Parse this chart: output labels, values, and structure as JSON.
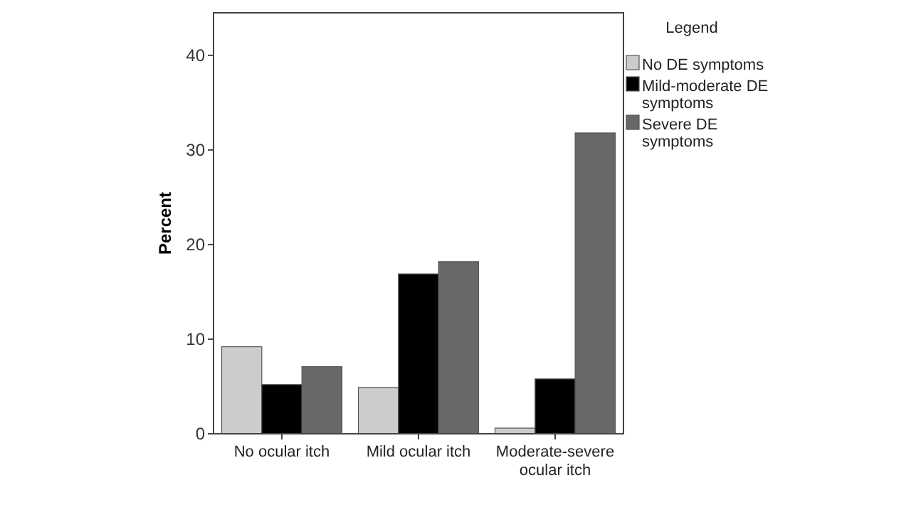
{
  "chart_data": {
    "type": "bar",
    "ylabel": "Percent",
    "legend_title": "Legend",
    "categories": [
      "No ocular itch",
      "Mild ocular itch",
      "Moderate-severe ocular itch"
    ],
    "series": [
      {
        "name": "No DE symptoms",
        "color": "#cccccc",
        "values": [
          9.2,
          4.9,
          0.6
        ]
      },
      {
        "name": "Mild-moderate DE symptoms",
        "color": "#000000",
        "values": [
          5.2,
          16.9,
          5.8
        ]
      },
      {
        "name": "Severe DE symptoms",
        "color": "#686868",
        "values": [
          7.1,
          18.2,
          31.8
        ]
      }
    ],
    "ylim": [
      0,
      44.5
    ],
    "yticks": [
      0,
      10,
      20,
      30,
      40
    ],
    "grid": false,
    "legend": "right"
  }
}
